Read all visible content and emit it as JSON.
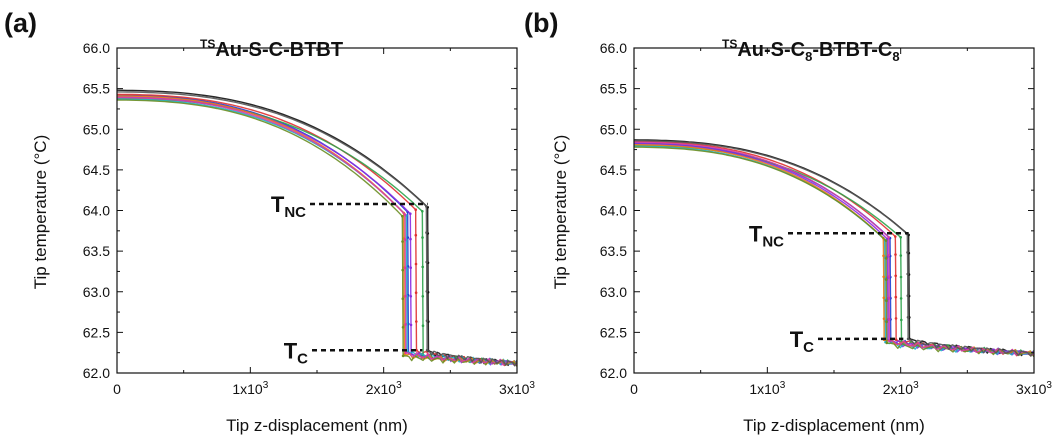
{
  "chart_data": [
    {
      "panel": "(a)",
      "type": "line",
      "title": {
        "pre": "TS",
        "main": "Au-S-C-BTBT"
      },
      "xlabel": "Tip z-displacement (nm)",
      "ylabel": "Tip temperature (°C)",
      "xlim": [
        0,
        3000
      ],
      "ylim": [
        62.0,
        66.0
      ],
      "xticks": [
        {
          "value": 0,
          "base": "0",
          "exp": ""
        },
        {
          "value": 1000,
          "base": "1x10",
          "exp": "3"
        },
        {
          "value": 2000,
          "base": "2x10",
          "exp": "3"
        },
        {
          "value": 3000,
          "base": "3x10",
          "exp": "3"
        }
      ],
      "yticks": [
        "62.0",
        "62.5",
        "63.0",
        "63.5",
        "64.0",
        "64.5",
        "65.0",
        "65.5",
        "66.0"
      ],
      "annotations": [
        {
          "main": "T",
          "sub": "NC",
          "value": 64.08
        },
        {
          "main": "T",
          "sub": "C",
          "value": 62.28
        }
      ],
      "curve_model": {
        "y_start": 65.4,
        "y_end_noncontact": 64.15,
        "snap_z": 2150,
        "y_contact": 62.28,
        "y_far": 62.12
      },
      "series": [
        {
          "color": "#111111",
          "y0": 65.48,
          "snap": 2330,
          "tnc": 64.08,
          "tc": 62.27
        },
        {
          "color": "#1f3fd1",
          "y0": 65.42,
          "snap": 2180,
          "tnc": 64.02,
          "tc": 62.25
        },
        {
          "color": "#e03030",
          "y0": 65.43,
          "snap": 2240,
          "tnc": 64.05,
          "tc": 62.28
        },
        {
          "color": "#2da34b",
          "y0": 65.38,
          "snap": 2290,
          "tnc": 64.03,
          "tc": 62.22
        },
        {
          "color": "#8a2be2",
          "y0": 65.4,
          "snap": 2200,
          "tnc": 64.0,
          "tc": 62.24
        },
        {
          "color": "#1fb0c8",
          "y0": 65.37,
          "snap": 2170,
          "tnc": 63.98,
          "tc": 62.26
        },
        {
          "color": "#e87c17",
          "y0": 65.41,
          "snap": 2150,
          "tnc": 64.01,
          "tc": 62.23
        },
        {
          "color": "#6b8e23",
          "y0": 65.36,
          "snap": 2140,
          "tnc": 63.97,
          "tc": 62.21
        },
        {
          "color": "#d63ca6",
          "y0": 65.39,
          "snap": 2160,
          "tnc": 63.99,
          "tc": 62.25
        },
        {
          "color": "#555555",
          "y0": 65.46,
          "snap": 2320,
          "tnc": 64.09,
          "tc": 62.28
        }
      ]
    },
    {
      "panel": "(b)",
      "type": "line",
      "title": {
        "pre": "TS",
        "main": "Au-S-C",
        "sub1": "8",
        "mid": "-BTBT-C",
        "sub2": "8"
      },
      "xlabel": "Tip z-displacement (nm)",
      "ylabel": "Tip temperature (°C)",
      "xlim": [
        0,
        3000
      ],
      "ylim": [
        62.0,
        66.0
      ],
      "xticks": [
        {
          "value": 0,
          "base": "0",
          "exp": ""
        },
        {
          "value": 1000,
          "base": "1x10",
          "exp": "3"
        },
        {
          "value": 2000,
          "base": "2x10",
          "exp": "3"
        },
        {
          "value": 3000,
          "base": "3x10",
          "exp": "3"
        }
      ],
      "yticks": [
        "62.0",
        "62.5",
        "63.0",
        "63.5",
        "64.0",
        "64.5",
        "65.0",
        "65.5",
        "66.0"
      ],
      "annotations": [
        {
          "main": "T",
          "sub": "NC",
          "value": 63.72
        },
        {
          "main": "T",
          "sub": "C",
          "value": 62.42
        }
      ],
      "curve_model": {
        "y_start": 64.82,
        "y_end_noncontact": 63.78,
        "snap_z": 1880,
        "y_contact": 62.42,
        "y_far": 62.24
      },
      "series": [
        {
          "color": "#111111",
          "y0": 64.87,
          "snap": 2060,
          "tnc": 63.74,
          "tc": 62.42
        },
        {
          "color": "#1f3fd1",
          "y0": 64.83,
          "snap": 1920,
          "tnc": 63.7,
          "tc": 62.4
        },
        {
          "color": "#e03030",
          "y0": 64.85,
          "snap": 1960,
          "tnc": 63.72,
          "tc": 62.41
        },
        {
          "color": "#2da34b",
          "y0": 64.8,
          "snap": 2000,
          "tnc": 63.71,
          "tc": 62.39
        },
        {
          "color": "#8a2be2",
          "y0": 64.82,
          "snap": 1900,
          "tnc": 63.69,
          "tc": 62.4
        },
        {
          "color": "#1fb0c8",
          "y0": 64.79,
          "snap": 1880,
          "tnc": 63.68,
          "tc": 62.38
        },
        {
          "color": "#e87c17",
          "y0": 64.81,
          "snap": 1870,
          "tnc": 63.7,
          "tc": 62.41
        },
        {
          "color": "#6b8e23",
          "y0": 64.78,
          "snap": 1890,
          "tnc": 63.67,
          "tc": 62.37
        },
        {
          "color": "#d63ca6",
          "y0": 64.84,
          "snap": 1910,
          "tnc": 63.71,
          "tc": 62.4
        },
        {
          "color": "#555555",
          "y0": 64.86,
          "snap": 2050,
          "tnc": 63.75,
          "tc": 62.42
        }
      ]
    }
  ]
}
